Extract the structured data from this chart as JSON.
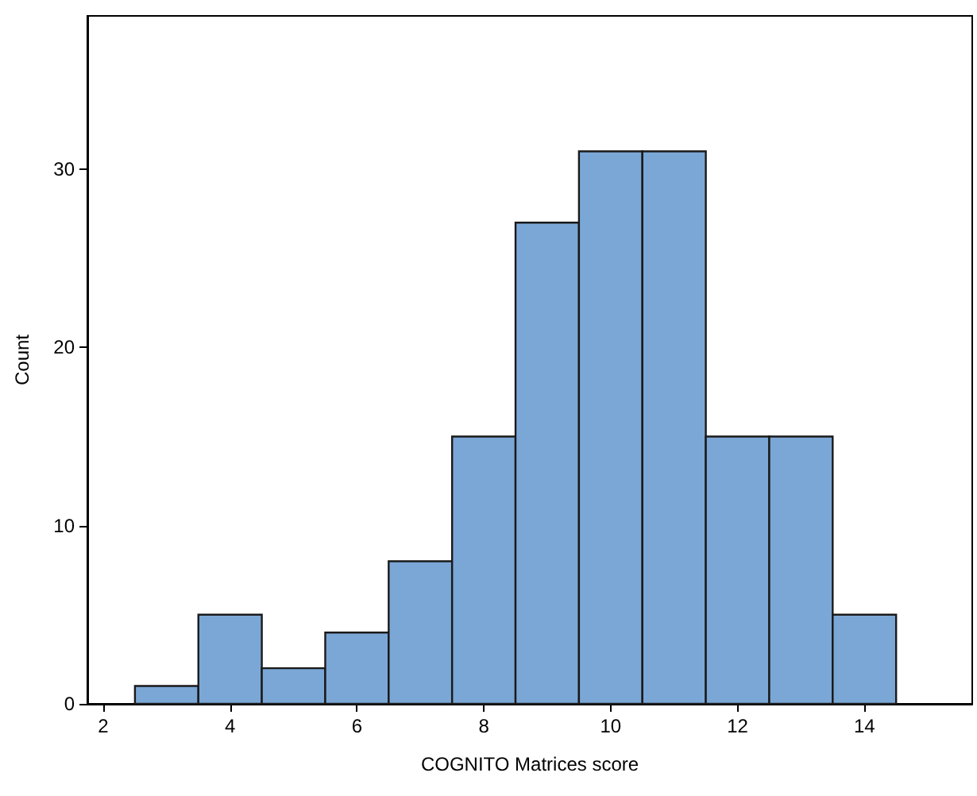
{
  "chart_data": {
    "type": "histogram",
    "xlabel": "COGNITO Matrices score",
    "ylabel": "Count",
    "bins": [
      2.5,
      3.5,
      4.5,
      5.5,
      6.5,
      7.5,
      8.5,
      9.5,
      10.5,
      11.5,
      12.5,
      13.5,
      14.5
    ],
    "values": [
      1,
      5,
      2,
      4,
      8,
      15,
      27,
      31,
      31,
      15,
      15,
      5
    ],
    "color": "#7ba7d6",
    "xlim": [
      1.75,
      15.7
    ],
    "xticks": [
      2,
      4,
      6,
      8,
      10,
      12,
      14
    ],
    "ylim": [
      0,
      38.6
    ],
    "yticks": [
      0,
      10,
      20,
      30
    ],
    "grid": false
  }
}
